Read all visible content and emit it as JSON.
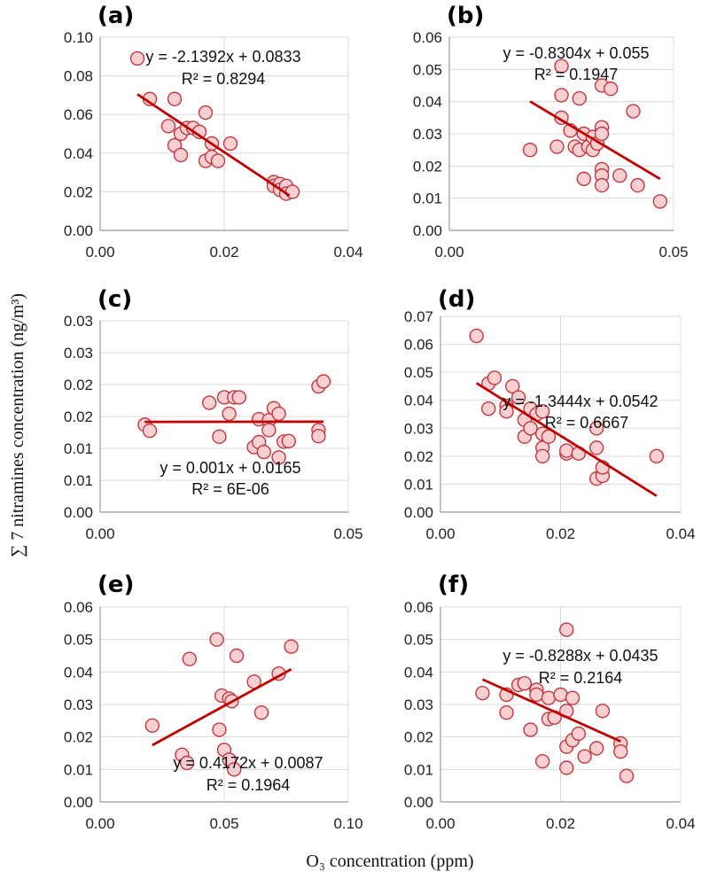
{
  "figure": {
    "xlabel": "O₃ concentration (ppm)",
    "ylabel": "∑ 7 nitramines concentration (ng/m³)"
  },
  "colors": {
    "marker_fill": "#f9cfd1",
    "marker_edge": "#c0383f",
    "trend": "#c00000",
    "grid": "#d9d9d9"
  },
  "chart_data": [
    {
      "type": "scatter",
      "label": "(a)",
      "xlim": [
        0,
        0.04
      ],
      "ylim": [
        0,
        0.1
      ],
      "xticks": [
        "0.00",
        "0.02",
        "0.04"
      ],
      "yticks": [
        "0.00",
        "0.02",
        "0.04",
        "0.06",
        "0.08",
        "0.10"
      ],
      "equation": "y = -2.1392x + 0.0833",
      "r2": "R² = 0.8294",
      "trend": {
        "slope": -2.1392,
        "intercept": 0.0833,
        "x_range": [
          0.006,
          0.0305
        ]
      },
      "points": [
        [
          0.006,
          0.089
        ],
        [
          0.008,
          0.068
        ],
        [
          0.011,
          0.054
        ],
        [
          0.012,
          0.068
        ],
        [
          0.012,
          0.044
        ],
        [
          0.013,
          0.039
        ],
        [
          0.013,
          0.05
        ],
        [
          0.014,
          0.053
        ],
        [
          0.015,
          0.053
        ],
        [
          0.016,
          0.051
        ],
        [
          0.017,
          0.061
        ],
        [
          0.017,
          0.036
        ],
        [
          0.018,
          0.045
        ],
        [
          0.018,
          0.038
        ],
        [
          0.019,
          0.036
        ],
        [
          0.021,
          0.045
        ],
        [
          0.028,
          0.025
        ],
        [
          0.028,
          0.023
        ],
        [
          0.029,
          0.024
        ],
        [
          0.029,
          0.021
        ],
        [
          0.03,
          0.023
        ],
        [
          0.03,
          0.019
        ],
        [
          0.031,
          0.02
        ]
      ]
    },
    {
      "type": "scatter",
      "label": "(b)",
      "xlim": [
        0,
        0.05
      ],
      "ylim": [
        0,
        0.06
      ],
      "xticks": [
        "0.00",
        "0.05"
      ],
      "yticks": [
        "0.00",
        "0.01",
        "0.02",
        "0.03",
        "0.04",
        "0.05",
        "0.06"
      ],
      "equation": "y = -0.8304x + 0.055",
      "r2": "R² = 0.1947",
      "trend": {
        "slope": -0.8304,
        "intercept": 0.055,
        "x_range": [
          0.018,
          0.047
        ]
      },
      "points": [
        [
          0.018,
          0.025
        ],
        [
          0.024,
          0.026
        ],
        [
          0.025,
          0.051
        ],
        [
          0.025,
          0.042
        ],
        [
          0.025,
          0.035
        ],
        [
          0.027,
          0.031
        ],
        [
          0.028,
          0.026
        ],
        [
          0.029,
          0.041
        ],
        [
          0.029,
          0.025
        ],
        [
          0.03,
          0.03
        ],
        [
          0.03,
          0.016
        ],
        [
          0.031,
          0.026
        ],
        [
          0.032,
          0.029
        ],
        [
          0.032,
          0.025
        ],
        [
          0.033,
          0.027
        ],
        [
          0.034,
          0.045
        ],
        [
          0.034,
          0.032
        ],
        [
          0.034,
          0.03
        ],
        [
          0.034,
          0.019
        ],
        [
          0.034,
          0.017
        ],
        [
          0.034,
          0.014
        ],
        [
          0.036,
          0.044
        ],
        [
          0.038,
          0.017
        ],
        [
          0.041,
          0.037
        ],
        [
          0.042,
          0.014
        ],
        [
          0.047,
          0.009
        ]
      ]
    },
    {
      "type": "scatter",
      "label": "(c)",
      "xlim": [
        0,
        0.05
      ],
      "ylim": [
        0,
        0.035
      ],
      "xticks": [
        "0.00",
        "0.05"
      ],
      "yticks": [
        "0.00",
        "0.01",
        "0.01",
        "0.02",
        "0.02",
        "0.03",
        "0.03"
      ],
      "equation": "y = 0.001x + 0.0165",
      "r2": "R² = 6E-06",
      "trend": {
        "slope": 0.001,
        "intercept": 0.0165,
        "x_range": [
          0.009,
          0.045
        ]
      },
      "points": [
        [
          0.009,
          0.016
        ],
        [
          0.01,
          0.0149
        ],
        [
          0.022,
          0.02
        ],
        [
          0.024,
          0.0138
        ],
        [
          0.025,
          0.021
        ],
        [
          0.026,
          0.018
        ],
        [
          0.027,
          0.021
        ],
        [
          0.028,
          0.021
        ],
        [
          0.031,
          0.0119
        ],
        [
          0.032,
          0.0128
        ],
        [
          0.032,
          0.017
        ],
        [
          0.033,
          0.011
        ],
        [
          0.034,
          0.0168
        ],
        [
          0.034,
          0.015
        ],
        [
          0.035,
          0.019
        ],
        [
          0.036,
          0.01
        ],
        [
          0.036,
          0.018
        ],
        [
          0.037,
          0.0129
        ],
        [
          0.038,
          0.013
        ],
        [
          0.044,
          0.023
        ],
        [
          0.044,
          0.015
        ],
        [
          0.044,
          0.0139
        ],
        [
          0.045,
          0.0239
        ]
      ]
    },
    {
      "type": "scatter",
      "label": "(d)",
      "xlim": [
        0,
        0.04
      ],
      "ylim": [
        0,
        0.07
      ],
      "xticks": [
        "0.00",
        "0.02",
        "0.04"
      ],
      "yticks": [
        "0.00",
        "0.01",
        "0.02",
        "0.03",
        "0.04",
        "0.05",
        "0.06",
        "0.07"
      ],
      "equation": "y = -1.3444x + 0.0542",
      "r2": "R² = 0.6667",
      "trend": {
        "slope": -1.3444,
        "intercept": 0.0542,
        "x_range": [
          0.006,
          0.036
        ]
      },
      "points": [
        [
          0.006,
          0.063
        ],
        [
          0.008,
          0.046
        ],
        [
          0.008,
          0.037
        ],
        [
          0.009,
          0.048
        ],
        [
          0.011,
          0.038
        ],
        [
          0.011,
          0.036
        ],
        [
          0.012,
          0.045
        ],
        [
          0.013,
          0.041
        ],
        [
          0.014,
          0.027
        ],
        [
          0.014,
          0.033
        ],
        [
          0.015,
          0.037
        ],
        [
          0.015,
          0.03
        ],
        [
          0.016,
          0.035
        ],
        [
          0.017,
          0.036
        ],
        [
          0.017,
          0.028
        ],
        [
          0.017,
          0.023
        ],
        [
          0.017,
          0.02
        ],
        [
          0.018,
          0.027
        ],
        [
          0.021,
          0.021
        ],
        [
          0.021,
          0.022
        ],
        [
          0.023,
          0.021
        ],
        [
          0.026,
          0.03
        ],
        [
          0.026,
          0.023
        ],
        [
          0.026,
          0.012
        ],
        [
          0.027,
          0.013
        ],
        [
          0.027,
          0.016
        ],
        [
          0.036,
          0.02
        ]
      ]
    },
    {
      "type": "scatter",
      "label": "(e)",
      "xlim": [
        0,
        0.1
      ],
      "ylim": [
        0,
        0.06
      ],
      "xticks": [
        "0.00",
        "0.05",
        "0.10"
      ],
      "yticks": [
        "0.00",
        "0.01",
        "0.02",
        "0.03",
        "0.04",
        "0.05",
        "0.06"
      ],
      "equation": "y = 0.4172x + 0.0087",
      "r2": "R² = 0.1964",
      "trend": {
        "slope": 0.4172,
        "intercept": 0.0087,
        "x_range": [
          0.021,
          0.077
        ]
      },
      "points": [
        [
          0.021,
          0.0235
        ],
        [
          0.033,
          0.0145
        ],
        [
          0.035,
          0.012
        ],
        [
          0.036,
          0.044
        ],
        [
          0.047,
          0.05
        ],
        [
          0.048,
          0.0222
        ],
        [
          0.049,
          0.0327
        ],
        [
          0.05,
          0.016
        ],
        [
          0.052,
          0.0318
        ],
        [
          0.052,
          0.013
        ],
        [
          0.053,
          0.031
        ],
        [
          0.054,
          0.01
        ],
        [
          0.055,
          0.045
        ],
        [
          0.062,
          0.037
        ],
        [
          0.065,
          0.0275
        ],
        [
          0.072,
          0.0395
        ],
        [
          0.077,
          0.0478
        ]
      ]
    },
    {
      "type": "scatter",
      "label": "(f)",
      "xlim": [
        0,
        0.04
      ],
      "ylim": [
        0,
        0.06
      ],
      "xticks": [
        "0.00",
        "0.02",
        "0.04"
      ],
      "yticks": [
        "0.00",
        "0.01",
        "0.02",
        "0.03",
        "0.04",
        "0.05",
        "0.06"
      ],
      "equation": "y = -0.8288x + 0.0435",
      "r2": "R² = 0.2164",
      "trend": {
        "slope": -0.8288,
        "intercept": 0.0435,
        "x_range": [
          0.007,
          0.03
        ]
      },
      "points": [
        [
          0.007,
          0.0335
        ],
        [
          0.011,
          0.033
        ],
        [
          0.011,
          0.0275
        ],
        [
          0.013,
          0.036
        ],
        [
          0.014,
          0.0365
        ],
        [
          0.015,
          0.0222
        ],
        [
          0.016,
          0.0345
        ],
        [
          0.016,
          0.033
        ],
        [
          0.017,
          0.0125
        ],
        [
          0.018,
          0.0255
        ],
        [
          0.018,
          0.032
        ],
        [
          0.019,
          0.026
        ],
        [
          0.02,
          0.033
        ],
        [
          0.021,
          0.053
        ],
        [
          0.021,
          0.017
        ],
        [
          0.021,
          0.0105
        ],
        [
          0.021,
          0.028
        ],
        [
          0.022,
          0.032
        ],
        [
          0.022,
          0.019
        ],
        [
          0.023,
          0.021
        ],
        [
          0.024,
          0.014
        ],
        [
          0.026,
          0.0165
        ],
        [
          0.027,
          0.028
        ],
        [
          0.03,
          0.018
        ],
        [
          0.03,
          0.0155
        ],
        [
          0.031,
          0.008
        ]
      ]
    }
  ]
}
